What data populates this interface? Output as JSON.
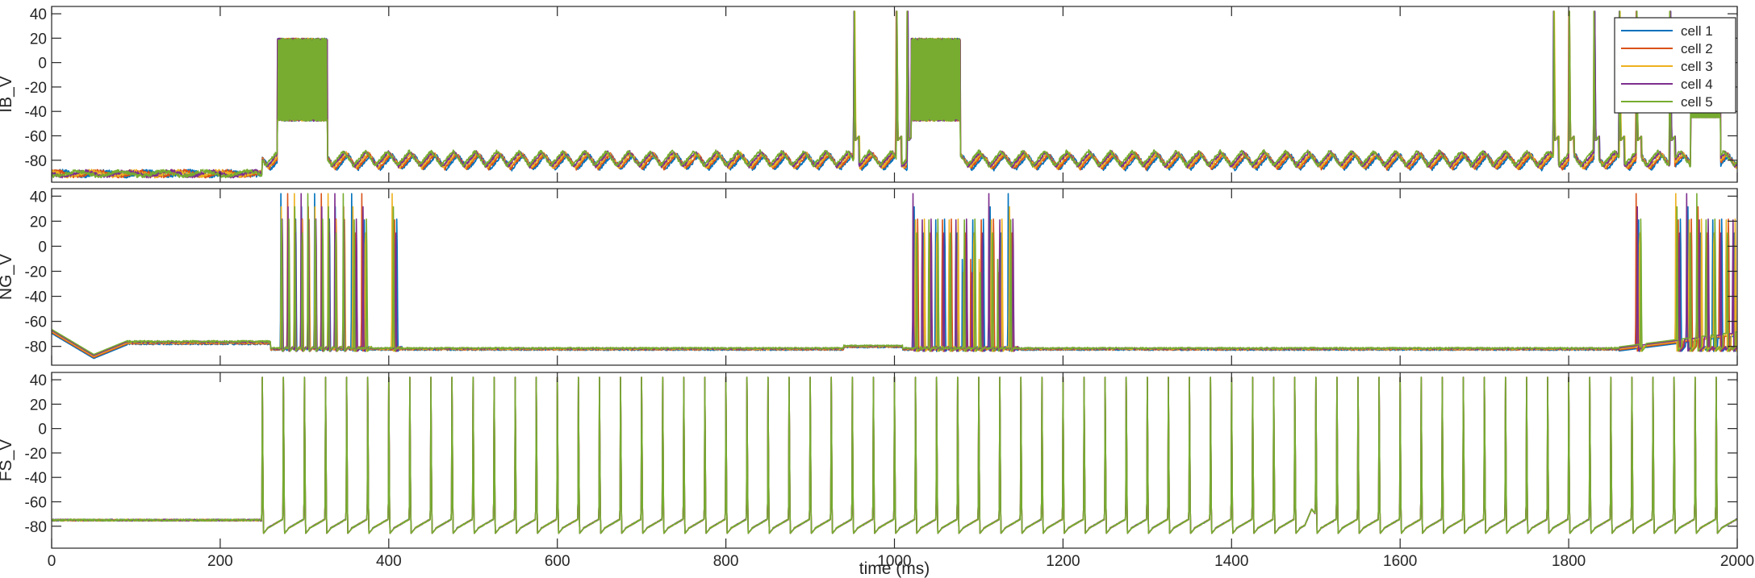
{
  "chart_data": {
    "type": "line",
    "figure_xlabel": "time (ms)",
    "legend": {
      "placement": "top-right of first panel",
      "entries": [
        {
          "name": "cell 1",
          "color": "#0072BD"
        },
        {
          "name": "cell 2",
          "color": "#D95319"
        },
        {
          "name": "cell 3",
          "color": "#EDB120"
        },
        {
          "name": "cell 4",
          "color": "#7E2F8E"
        },
        {
          "name": "cell 5",
          "color": "#77AC30"
        }
      ]
    },
    "xlim": [
      0,
      2000
    ],
    "xticks": [
      0,
      200,
      400,
      600,
      800,
      1000,
      1200,
      1400,
      1600,
      1800,
      2000
    ],
    "panels": [
      {
        "ylabel": "IB_V",
        "ylim": [
          -98,
          46
        ],
        "yticks": [
          -80,
          -60,
          -40,
          -20,
          0,
          20,
          40
        ],
        "baseline": -84,
        "pre_baseline": -91,
        "pre_until": 250,
        "bursts": [
          {
            "start": 268,
            "end": 327,
            "top": 20,
            "bottom": -48
          },
          {
            "start": 1020,
            "end": 1078,
            "top": 20,
            "bottom": -48
          }
        ],
        "spikes": [
          952,
          1002,
          1015,
          1782,
          1800,
          1830,
          1860,
          1880,
          1920
        ],
        "oscillation_period_ms": 26,
        "tail_plateau": {
          "start": 1945,
          "end": 1980,
          "top": 20,
          "bottom": -45
        }
      },
      {
        "ylabel": "NG_V",
        "ylim": [
          -95,
          46
        ],
        "yticks": [
          -80,
          -60,
          -40,
          -20,
          0,
          20,
          40
        ],
        "baseline": -82,
        "pre_baseline": -77,
        "trough_at": 50,
        "trough_value": -88,
        "spikes": [
          272,
          280,
          288,
          296,
          304,
          312,
          320,
          328,
          336,
          346,
          356,
          368,
          404,
          1022,
          1030,
          1038,
          1046,
          1054,
          1062,
          1070,
          1080,
          1090,
          1100,
          1112,
          1122,
          1135,
          1880,
          1927,
          1940,
          1952,
          1960,
          1968,
          1976,
          1984,
          1992
        ],
        "late_rise": {
          "start": 1860,
          "end": 2000,
          "value": -70
        }
      },
      {
        "ylabel": "FS_V",
        "ylim": [
          -98,
          46
        ],
        "yticks": [
          -80,
          -60,
          -40,
          -20,
          0,
          20,
          40
        ],
        "baseline": -78,
        "pre_baseline": -75,
        "spike_start": 250,
        "spike_end": 1980,
        "spike_period_ms": 25,
        "small_bump_at": 1495,
        "small_bump_value": -68
      }
    ]
  }
}
